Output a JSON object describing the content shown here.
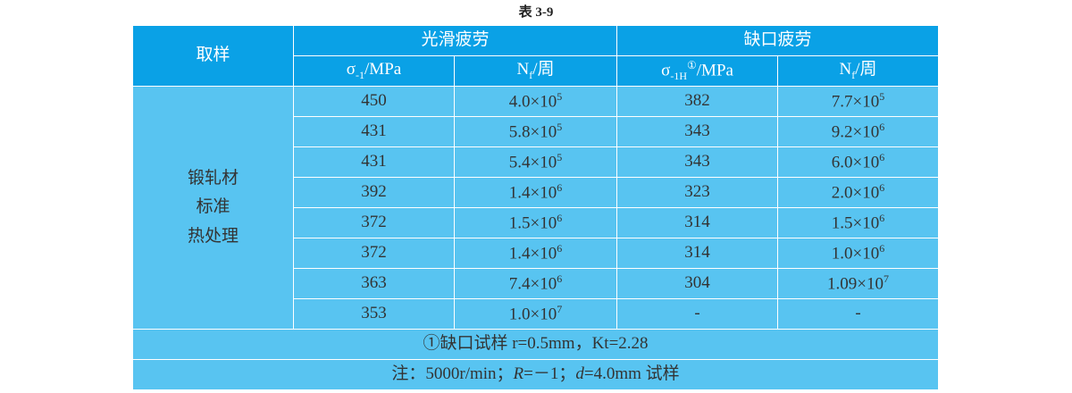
{
  "title": "表 3-9",
  "header": {
    "sample": "取样",
    "groups": [
      "光滑疲劳",
      "缺口疲劳"
    ],
    "columns": [
      [
        {
          "t": "σ"
        },
        {
          "sub": "-1"
        },
        {
          "t": "/MPa"
        }
      ],
      [
        {
          "t": "N"
        },
        {
          "sub": "f"
        },
        {
          "t": "/周"
        }
      ],
      [
        {
          "t": "σ"
        },
        {
          "sub": "-1H"
        },
        {
          "sup": "①"
        },
        {
          "t": "/MPa"
        }
      ],
      [
        {
          "t": "N"
        },
        {
          "sub": "f"
        },
        {
          "t": "/周"
        }
      ]
    ]
  },
  "sample_lines": [
    "锻轧材",
    "标准",
    "热处理"
  ],
  "rows": [
    [
      [
        {
          "t": "450"
        }
      ],
      [
        {
          "t": "4.0×10"
        },
        {
          "sup": "5"
        }
      ],
      [
        {
          "t": "382"
        }
      ],
      [
        {
          "t": "7.7×10"
        },
        {
          "sup": "5"
        }
      ]
    ],
    [
      [
        {
          "t": "431"
        }
      ],
      [
        {
          "t": "5.8×10"
        },
        {
          "sup": "5"
        }
      ],
      [
        {
          "t": "343"
        }
      ],
      [
        {
          "t": "9.2×10"
        },
        {
          "sup": "6"
        }
      ]
    ],
    [
      [
        {
          "t": "431"
        }
      ],
      [
        {
          "t": "5.4×10"
        },
        {
          "sup": "5"
        }
      ],
      [
        {
          "t": "343"
        }
      ],
      [
        {
          "t": "6.0×10"
        },
        {
          "sup": "6"
        }
      ]
    ],
    [
      [
        {
          "t": "392"
        }
      ],
      [
        {
          "t": "1.4×10"
        },
        {
          "sup": "6"
        }
      ],
      [
        {
          "t": "323"
        }
      ],
      [
        {
          "t": "2.0×10"
        },
        {
          "sup": "6"
        }
      ]
    ],
    [
      [
        {
          "t": "372"
        }
      ],
      [
        {
          "t": "1.5×10"
        },
        {
          "sup": "6"
        }
      ],
      [
        {
          "t": "314"
        }
      ],
      [
        {
          "t": "1.5×10"
        },
        {
          "sup": "6"
        }
      ]
    ],
    [
      [
        {
          "t": "372"
        }
      ],
      [
        {
          "t": "1.4×10"
        },
        {
          "sup": "6"
        }
      ],
      [
        {
          "t": "314"
        }
      ],
      [
        {
          "t": "1.0×10"
        },
        {
          "sup": "6"
        }
      ]
    ],
    [
      [
        {
          "t": "363"
        }
      ],
      [
        {
          "t": "7.4×10"
        },
        {
          "sup": "6"
        }
      ],
      [
        {
          "t": "304"
        }
      ],
      [
        {
          "t": "1.09×10"
        },
        {
          "sup": "7"
        }
      ]
    ],
    [
      [
        {
          "t": "353"
        }
      ],
      [
        {
          "t": "1.0×10"
        },
        {
          "sup": "7"
        }
      ],
      [
        {
          "t": "-"
        }
      ],
      [
        {
          "t": "-"
        }
      ]
    ]
  ],
  "notes": [
    [
      {
        "t": "①缺口试样 r=0.5mm，Kt=2.28"
      }
    ],
    [
      {
        "t": "注：5000r/min；"
      },
      {
        "i": "R"
      },
      {
        "t": "=－1；"
      },
      {
        "i": "d"
      },
      {
        "t": "=4.0mm 试样"
      }
    ]
  ]
}
